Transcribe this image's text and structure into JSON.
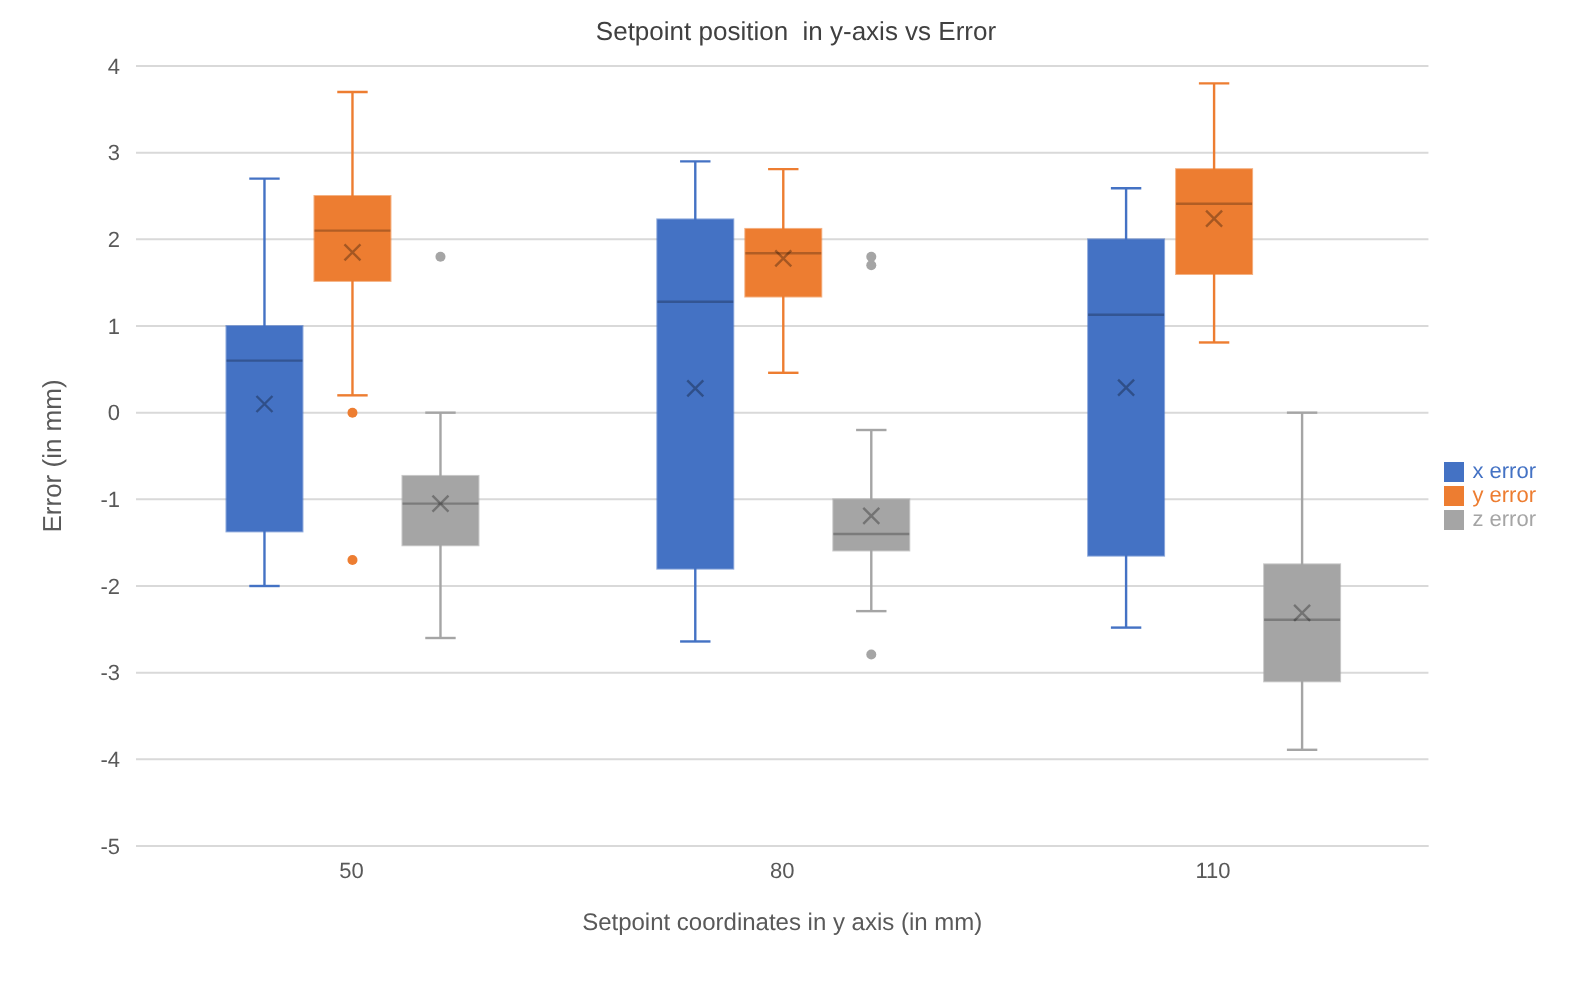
{
  "chart_data": {
    "type": "box",
    "title": "Setpoint position  in y-axis vs Error",
    "xlabel": "Setpoint coordinates in y axis (in mm)",
    "ylabel": "Error (in mm)",
    "categories": [
      "50",
      "80",
      "110"
    ],
    "series": [
      {
        "name": "x error",
        "color": "#4472c4",
        "boxes": [
          {
            "low": -2.0,
            "q1": -1.37,
            "median": 0.6,
            "q3": 1.0,
            "high": 2.7,
            "mean": 0.1
          },
          {
            "low": -2.64,
            "q1": -1.8,
            "median": 1.28,
            "q3": 2.23,
            "high": 2.9,
            "mean": 0.28
          },
          {
            "low": -2.48,
            "q1": -1.65,
            "median": 1.13,
            "q3": 2.0,
            "high": 2.59,
            "mean": 0.29
          }
        ]
      },
      {
        "name": "y error",
        "color": "#ed7d31",
        "boxes": [
          {
            "low": 0.2,
            "q1": 1.52,
            "median": 2.1,
            "q3": 2.5,
            "high": 3.7,
            "mean": 1.85,
            "outliers": [
              0,
              -1.7
            ]
          },
          {
            "low": 0.46,
            "q1": 1.34,
            "median": 1.84,
            "q3": 2.12,
            "high": 2.81,
            "mean": 1.78
          },
          {
            "low": 0.81,
            "q1": 1.6,
            "median": 2.41,
            "q3": 2.81,
            "high": 3.8,
            "mean": 2.24
          }
        ]
      },
      {
        "name": "z error",
        "color": "#a5a5a5",
        "boxes": [
          {
            "low": -2.6,
            "q1": -1.53,
            "median": -1.05,
            "q3": -0.73,
            "high": 0,
            "mean": -1.05,
            "outliers": [
              1.8
            ]
          },
          {
            "low": -2.29,
            "q1": -1.59,
            "median": -1.4,
            "q3": -1.0,
            "high": -0.2,
            "mean": -1.19,
            "outliers": [
              1.7,
              1.8,
              -2.79
            ]
          },
          {
            "low": -3.89,
            "q1": -3.1,
            "median": -2.39,
            "q3": -1.75,
            "high": 0,
            "mean": -2.31
          }
        ]
      }
    ],
    "ylim": [
      -5,
      4
    ],
    "yticks": [
      -5,
      -4,
      -3,
      -2,
      -1,
      0,
      1,
      2,
      3,
      4
    ],
    "grid": "y",
    "legend": "right",
    "marker": "circle"
  }
}
